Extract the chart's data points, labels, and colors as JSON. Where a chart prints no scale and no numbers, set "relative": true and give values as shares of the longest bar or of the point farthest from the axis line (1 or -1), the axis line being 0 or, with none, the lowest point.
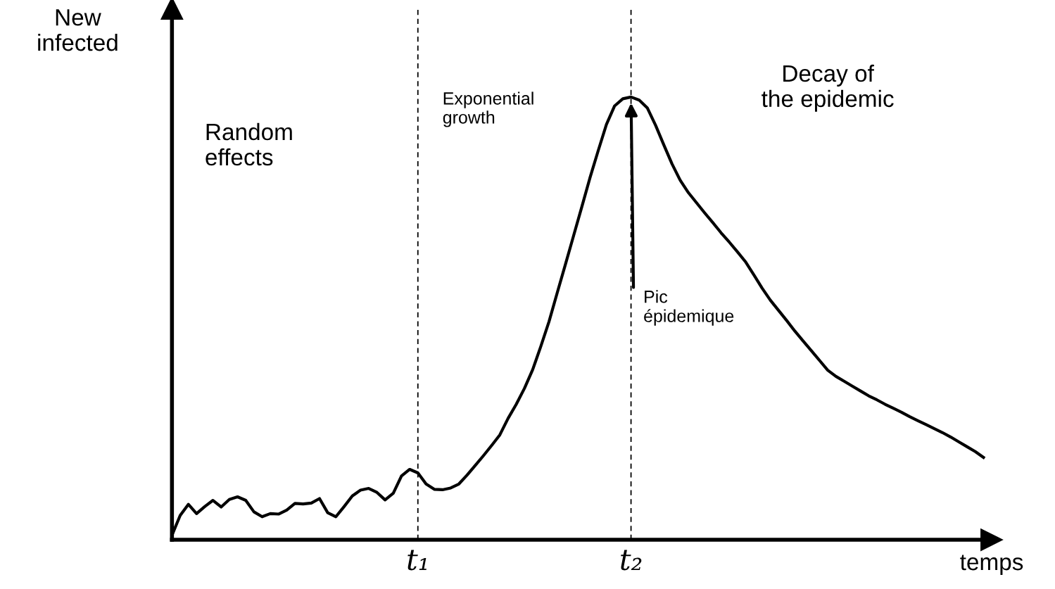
{
  "chart_data": {
    "type": "line",
    "relative": true,
    "xlabel": "temps",
    "ylabel": "New\ninfected",
    "categories": [
      null,
      null,
      null,
      null,
      null,
      null,
      null,
      null,
      null,
      null,
      null,
      null,
      null,
      null,
      null,
      null,
      null,
      null,
      null,
      null,
      null,
      null,
      null,
      null,
      null,
      null,
      null,
      null,
      null,
      null,
      "t₁",
      null,
      null,
      null,
      null,
      null,
      null,
      null,
      null,
      null,
      null,
      null,
      null,
      null,
      null,
      null,
      null,
      null,
      null,
      null,
      null,
      null,
      null,
      null,
      null,
      null,
      "t₂",
      null,
      null,
      null,
      null,
      null,
      null,
      null,
      null,
      null,
      null,
      null,
      null,
      null,
      null,
      null,
      null,
      null,
      null,
      null,
      null,
      null,
      null,
      null,
      null,
      null,
      null,
      null,
      null,
      null,
      null,
      null,
      null,
      null,
      null,
      null,
      null,
      null,
      null,
      null,
      null,
      null,
      null,
      null
    ],
    "series": [
      {
        "color": "#000000",
        "values": [
          0.01,
          0.055,
          0.08,
          0.059,
          0.075,
          0.089,
          0.074,
          0.091,
          0.097,
          0.089,
          0.063,
          0.052,
          0.059,
          0.058,
          0.067,
          0.082,
          0.081,
          0.083,
          0.093,
          0.061,
          0.052,
          0.075,
          0.099,
          0.112,
          0.116,
          0.107,
          0.09,
          0.105,
          0.144,
          0.159,
          0.151,
          0.126,
          0.114,
          0.113,
          0.117,
          0.126,
          0.146,
          0.168,
          0.19,
          0.213,
          0.237,
          0.274,
          0.306,
          0.342,
          0.384,
          0.437,
          0.493,
          0.558,
          0.622,
          0.687,
          0.752,
          0.818,
          0.879,
          0.938,
          0.98,
          0.996,
          1,
          0.993,
          0.975,
          0.936,
          0.892,
          0.849,
          0.812,
          0.784,
          0.761,
          0.738,
          0.716,
          0.693,
          0.672,
          0.65,
          0.627,
          0.598,
          0.568,
          0.541,
          0.518,
          0.495,
          0.471,
          0.449,
          0.427,
          0.405,
          0.383,
          0.369,
          0.358,
          0.347,
          0.336,
          0.325,
          0.316,
          0.306,
          0.297,
          0.288,
          0.278,
          0.269,
          0.26,
          0.251,
          0.242,
          0.232,
          0.221,
          0.21,
          0.199,
          0.186
        ]
      }
    ],
    "ref_lines": [
      {
        "axis": "x",
        "value": "t₁",
        "color": "#000000",
        "line_style": "dashed"
      },
      {
        "axis": "x",
        "value": "t₂",
        "color": "#000000",
        "line_style": "dashed"
      }
    ],
    "annotations": [
      "Random\neffects",
      "Exponential\ngrowth",
      "Decay of\nthe epidemic",
      "Pic\népidemique"
    ]
  }
}
